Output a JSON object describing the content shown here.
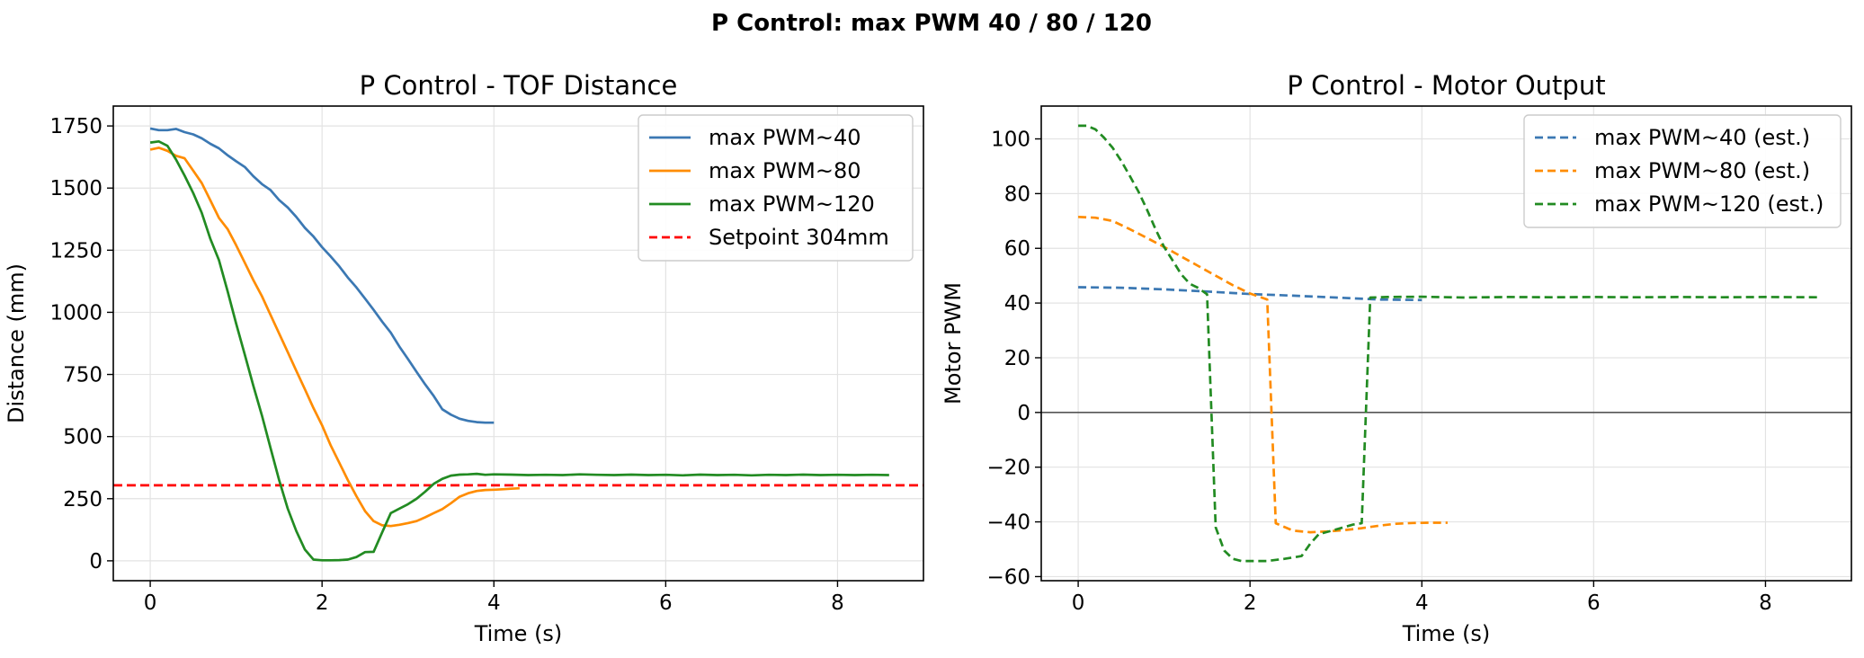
{
  "figure": {
    "suptitle": "P Control: max PWM 40 / 80 / 120"
  },
  "chart_data": [
    {
      "type": "line",
      "title": "P Control - TOF Distance",
      "xlabel": "Time (s)",
      "ylabel": "Distance (mm)",
      "xlim": [
        -0.43,
        9.0
      ],
      "ylim": [
        -80,
        1830
      ],
      "xticks": [
        0,
        2,
        4,
        6,
        8
      ],
      "yticks": [
        0,
        250,
        500,
        750,
        1000,
        1250,
        1500,
        1750
      ],
      "grid": true,
      "legend_position": "top-right",
      "hlines": [
        {
          "name": "Setpoint 304mm",
          "y": 304,
          "color": "#ff0000",
          "dash": true
        }
      ],
      "series": [
        {
          "name": "max PWM~40",
          "color": "#3b78b3",
          "dash": false,
          "x": [
            0,
            0.1,
            0.2,
            0.3,
            0.4,
            0.5,
            0.6,
            0.7,
            0.8,
            0.9,
            1.0,
            1.1,
            1.2,
            1.3,
            1.4,
            1.5,
            1.6,
            1.7,
            1.8,
            1.9,
            2.0,
            2.1,
            2.2,
            2.3,
            2.4,
            2.5,
            2.6,
            2.7,
            2.8,
            2.9,
            3.0,
            3.1,
            3.2,
            3.3,
            3.4,
            3.5,
            3.6,
            3.7,
            3.8,
            3.9,
            4.0
          ],
          "y": [
            1740,
            1733,
            1733,
            1738,
            1725,
            1716,
            1700,
            1678,
            1660,
            1632,
            1608,
            1585,
            1548,
            1516,
            1492,
            1452,
            1422,
            1384,
            1340,
            1305,
            1262,
            1225,
            1185,
            1140,
            1100,
            1055,
            1010,
            962,
            918,
            862,
            812,
            760,
            710,
            663,
            610,
            588,
            572,
            563,
            558,
            556,
            556
          ]
        },
        {
          "name": "max PWM~80",
          "color": "#ff8c00",
          "dash": false,
          "x": [
            0,
            0.1,
            0.2,
            0.3,
            0.4,
            0.5,
            0.6,
            0.7,
            0.8,
            0.9,
            1.0,
            1.1,
            1.2,
            1.3,
            1.4,
            1.5,
            1.6,
            1.7,
            1.8,
            1.9,
            2.0,
            2.1,
            2.2,
            2.3,
            2.4,
            2.5,
            2.6,
            2.7,
            2.8,
            2.9,
            3.0,
            3.1,
            3.2,
            3.3,
            3.4,
            3.5,
            3.6,
            3.7,
            3.8,
            3.9,
            4.0,
            4.1,
            4.2,
            4.3
          ],
          "y": [
            1655,
            1662,
            1650,
            1630,
            1620,
            1570,
            1520,
            1450,
            1380,
            1335,
            1270,
            1200,
            1130,
            1065,
            990,
            915,
            840,
            765,
            690,
            615,
            545,
            465,
            395,
            325,
            260,
            200,
            160,
            143,
            140,
            145,
            152,
            160,
            175,
            192,
            208,
            232,
            258,
            272,
            281,
            285,
            286,
            288,
            290,
            292
          ]
        },
        {
          "name": "max PWM~120",
          "color": "#228b22",
          "dash": false,
          "x": [
            0,
            0.1,
            0.2,
            0.3,
            0.4,
            0.5,
            0.6,
            0.7,
            0.8,
            0.9,
            1.0,
            1.1,
            1.2,
            1.3,
            1.4,
            1.5,
            1.6,
            1.7,
            1.8,
            1.9,
            2.0,
            2.1,
            2.2,
            2.3,
            2.4,
            2.5,
            2.6,
            2.7,
            2.8,
            2.9,
            3.0,
            3.1,
            3.2,
            3.3,
            3.4,
            3.5,
            3.6,
            3.7,
            3.8,
            3.9,
            4.0,
            4.2,
            4.4,
            4.6,
            4.8,
            5.0,
            5.2,
            5.4,
            5.6,
            5.8,
            6.0,
            6.2,
            6.4,
            6.6,
            6.8,
            7.0,
            7.2,
            7.4,
            7.6,
            7.8,
            8.0,
            8.2,
            8.4,
            8.6
          ],
          "y": [
            1683,
            1688,
            1670,
            1615,
            1550,
            1480,
            1400,
            1295,
            1210,
            1085,
            955,
            830,
            705,
            585,
            455,
            325,
            210,
            120,
            45,
            5,
            2,
            2,
            3,
            5,
            15,
            35,
            36,
            115,
            192,
            210,
            228,
            250,
            278,
            310,
            330,
            343,
            347,
            348,
            350,
            346,
            348,
            347,
            345,
            346,
            345,
            348,
            346,
            345,
            347,
            345,
            346,
            344,
            347,
            345,
            346,
            344,
            346,
            345,
            347,
            345,
            346,
            345,
            346,
            345
          ]
        }
      ]
    },
    {
      "type": "line",
      "title": "P Control - Motor Output",
      "xlabel": "Time (s)",
      "ylabel": "Motor PWM",
      "xlim": [
        -0.43,
        9.0
      ],
      "ylim": [
        -61.5,
        112
      ],
      "xticks": [
        0,
        2,
        4,
        6,
        8
      ],
      "yticks": [
        -60,
        -40,
        -20,
        0,
        20,
        40,
        60,
        80,
        100
      ],
      "grid": true,
      "legend_position": "top-right",
      "hlines": [
        {
          "name": "zero",
          "y": 0,
          "color": "#555555",
          "dash": false
        }
      ],
      "series": [
        {
          "name": "max PWM~40 (est.)",
          "color": "#3b78b3",
          "dash": true,
          "x": [
            0,
            0.5,
            1.0,
            1.5,
            2.0,
            2.5,
            3.0,
            3.5,
            4.0
          ],
          "y": [
            45.8,
            45.6,
            45.0,
            44.2,
            43.3,
            42.7,
            42.0,
            41.3,
            41.1
          ]
        },
        {
          "name": "max PWM~80 (est.)",
          "color": "#ff8c00",
          "dash": true,
          "x": [
            0,
            0.2,
            0.4,
            0.6,
            0.8,
            1.0,
            1.2,
            1.4,
            1.6,
            1.8,
            2.0,
            2.2,
            2.3,
            2.5,
            2.7,
            2.9,
            3.1,
            3.3,
            3.5,
            3.7,
            3.9,
            4.1,
            4.3
          ],
          "y": [
            71.5,
            71.2,
            70.0,
            67.0,
            63.8,
            60.5,
            57.0,
            53.5,
            50.0,
            46.5,
            43.5,
            41.3,
            -40.5,
            -43.2,
            -43.8,
            -43.5,
            -43.0,
            -42.3,
            -41.4,
            -40.7,
            -40.4,
            -40.3,
            -40.3
          ]
        },
        {
          "name": "max PWM~120 (est.)",
          "color": "#228b22",
          "dash": true,
          "x": [
            0,
            0.1,
            0.2,
            0.3,
            0.4,
            0.5,
            0.6,
            0.7,
            0.8,
            0.9,
            1.0,
            1.1,
            1.2,
            1.3,
            1.4,
            1.5,
            1.6,
            1.7,
            1.8,
            1.9,
            2.0,
            2.2,
            2.4,
            2.6,
            2.7,
            2.8,
            3.0,
            3.2,
            3.3,
            3.4,
            3.6,
            4.0,
            4.5,
            5.0,
            5.5,
            6.0,
            6.5,
            7.0,
            7.5,
            8.0,
            8.6
          ],
          "y": [
            104.8,
            104.8,
            103.5,
            100.5,
            96.8,
            92.0,
            86.5,
            80.8,
            74.2,
            67.0,
            60.5,
            55.5,
            50.5,
            47.0,
            45.5,
            43.2,
            -42.0,
            -50.5,
            -53.5,
            -54.3,
            -54.3,
            -54.3,
            -53.5,
            -52.5,
            -48.0,
            -44.5,
            -42.8,
            -41.0,
            -40.5,
            42.0,
            42.2,
            42.3,
            42.0,
            42.2,
            42.1,
            42.2,
            42.1,
            42.2,
            42.1,
            42.2,
            42.1
          ]
        }
      ]
    }
  ]
}
